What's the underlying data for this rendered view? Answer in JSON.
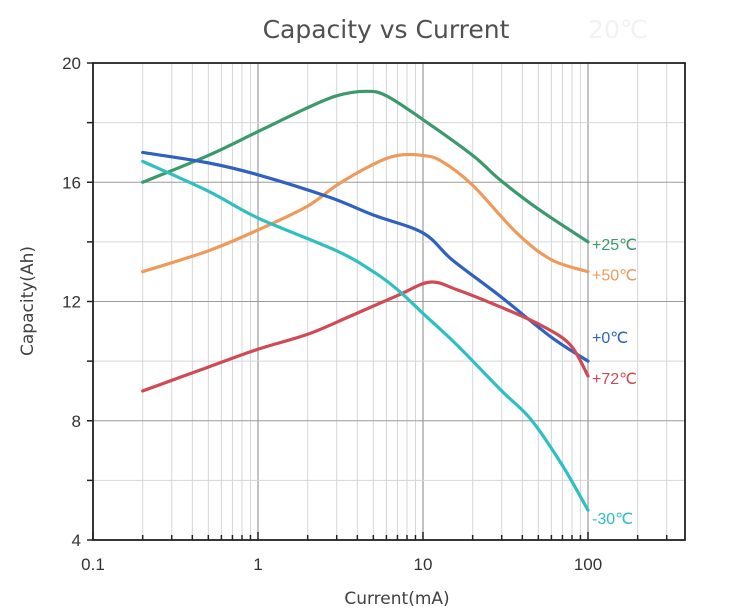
{
  "chart_data": {
    "type": "line",
    "title": "Capacity vs Current",
    "watermark": "20℃",
    "xlabel": "Current(mA)",
    "ylabel": "Capacity(Ah)",
    "xscale": "log",
    "xlim": [
      0.1,
      376
    ],
    "ylim": [
      4,
      20
    ],
    "x_ticks": [
      0.1,
      1,
      10,
      100
    ],
    "x_tick_labels": [
      "0.1",
      "1",
      "10",
      "100"
    ],
    "y_ticks": [
      4,
      8,
      12,
      16,
      20
    ],
    "y_tick_labels": [
      "4",
      "8",
      "12",
      "16",
      "20"
    ],
    "y_minor_ticks": [
      6,
      10,
      14,
      18
    ],
    "grid": true,
    "legend": "inline labels at right end of each line",
    "series": [
      {
        "name": "+25℃",
        "color": "#3a9a6a",
        "x": [
          0.2,
          0.5,
          1,
          2,
          3,
          4.5,
          6,
          10,
          20,
          29,
          50,
          100
        ],
        "y": [
          16.0,
          16.9,
          17.7,
          18.5,
          18.9,
          19.05,
          18.9,
          18.1,
          16.9,
          16.1,
          15.1,
          14.0
        ]
      },
      {
        "name": "+50℃",
        "color": "#ee9a5a",
        "x": [
          0.2,
          0.5,
          1,
          2,
          3,
          5,
          7,
          10,
          13,
          20,
          37,
          60,
          100
        ],
        "y": [
          13.0,
          13.7,
          14.4,
          15.2,
          15.9,
          16.6,
          16.9,
          16.9,
          16.7,
          15.9,
          14.3,
          13.4,
          13.0
        ]
      },
      {
        "name": "+0℃",
        "color": "#2f62c0",
        "x": [
          0.2,
          0.5,
          1,
          2.7,
          5,
          10,
          15,
          29,
          60,
          100
        ],
        "y": [
          17.0,
          16.65,
          16.25,
          15.5,
          14.9,
          14.3,
          13.4,
          12.2,
          10.8,
          10.0
        ]
      },
      {
        "name": "+72℃",
        "color": "#d04a55",
        "x": [
          0.2,
          0.5,
          1,
          2,
          3.6,
          7,
          11,
          16,
          30,
          52,
          78,
          100
        ],
        "y": [
          9.0,
          9.8,
          10.4,
          10.9,
          11.5,
          12.2,
          12.65,
          12.4,
          11.8,
          11.2,
          10.55,
          9.5
        ]
      },
      {
        "name": "-30℃",
        "color": "#2ec0c0",
        "x": [
          0.2,
          0.5,
          1,
          3,
          5,
          7,
          10,
          16,
          30,
          45,
          70,
          100
        ],
        "y": [
          16.7,
          15.7,
          14.8,
          13.7,
          13.0,
          12.4,
          11.6,
          10.55,
          9.0,
          8.05,
          6.5,
          5.0
        ]
      }
    ]
  }
}
